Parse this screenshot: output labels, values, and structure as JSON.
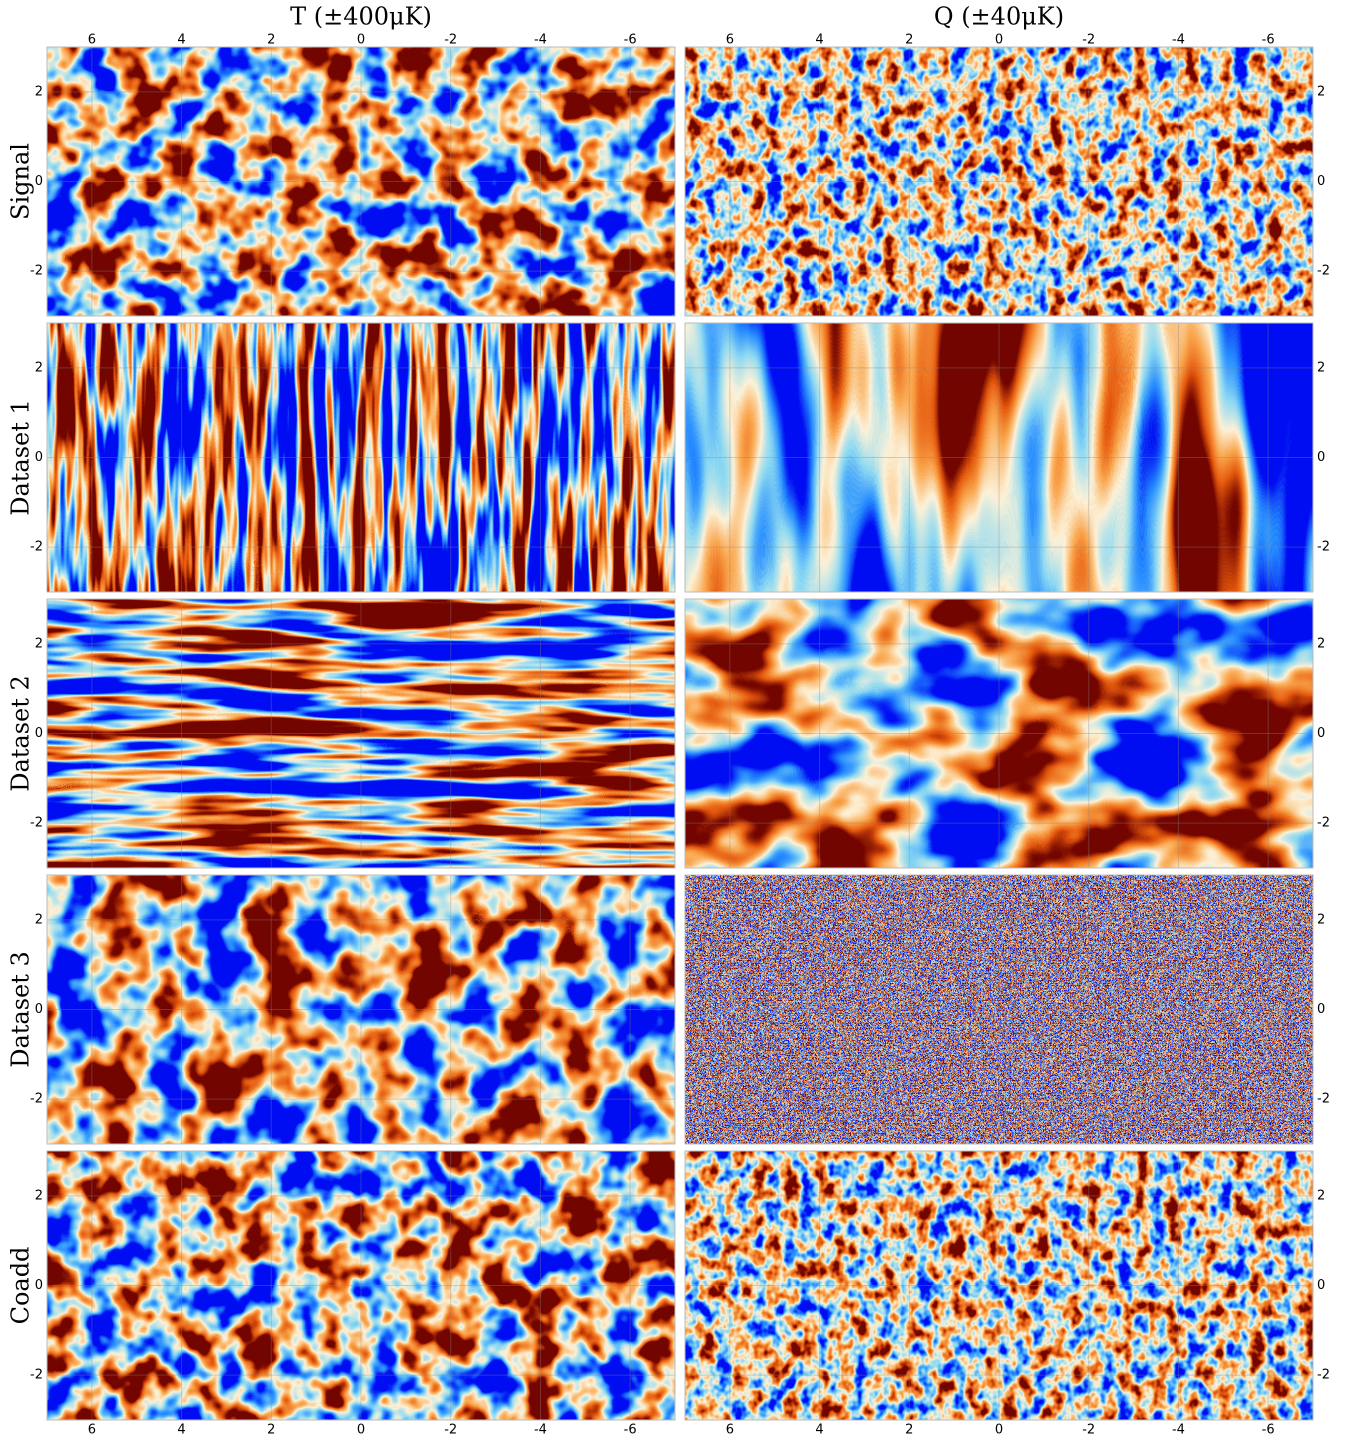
{
  "chart_data": {
    "type": "map-grid",
    "columns": [
      "T (±400μK)",
      "Q (±40μK)"
    ],
    "rows": [
      "Signal",
      "Dataset 1",
      "Dataset 2",
      "Dataset 3",
      "Coadd"
    ],
    "xlim": [
      7,
      -7
    ],
    "xticks": [
      6,
      4,
      2,
      0,
      -2,
      -4,
      -6
    ],
    "ylim": [
      -3,
      3
    ],
    "yticks": [
      -2,
      0,
      2
    ],
    "grid": true
  }
}
